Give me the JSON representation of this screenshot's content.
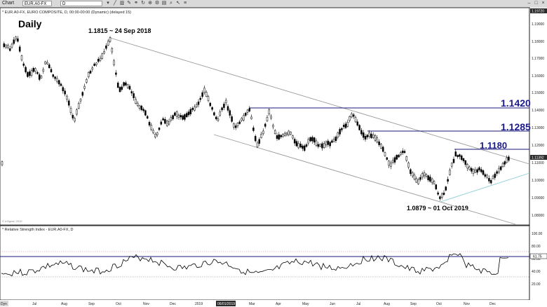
{
  "toolbar": {
    "window_label": "Chart",
    "symbol": "EUR.A0-FX",
    "interval": "D",
    "icons": [
      "chevron-down-icon",
      "line-icon",
      "chart-type-icon",
      "drawing-icon",
      "link-icon",
      "refresh-icon",
      "zoom-icon",
      "settings-icon",
      "print-icon",
      "search-icon",
      "cursor-icon",
      "menu-icon"
    ],
    "window_controls": [
      "minimize-icon",
      "maximize-icon",
      "close-icon"
    ]
  },
  "price_pane": {
    "header": "* EUR.A0-FX, EURO COMPOSITE, D, 00:00-00:00 (Dynamic) (delayed 15)",
    "title": "Daily",
    "annotation_high": "1.1815 ~ 24 Sep 2018",
    "annotation_low": "1.0879 ~ 01 Oct 2019",
    "levels": [
      {
        "label": "1.1420",
        "value": 1.142
      },
      {
        "label": "1.1285",
        "value": 1.1285
      },
      {
        "label": "1.1180",
        "value": 1.118
      }
    ],
    "last_price_label": "1.11392",
    "copyright": "© eSignal, 2019",
    "ylabels": [
      "1.19000",
      "1.18000",
      "1.17000",
      "1.16000",
      "1.15000",
      "1.14000",
      "1.13000",
      "1.12000",
      "1.11000",
      "1.10000",
      "1.09000",
      "1.08000"
    ],
    "ytop_label": "1.19720"
  },
  "rsi_pane": {
    "header": "* Relative Strength Index - EUR.A0-FX, D",
    "ylabels": [
      "100.00",
      "80.00",
      "60.00",
      "40.00",
      "20.00"
    ],
    "rsi_value_label": "61.75",
    "level_high": 70,
    "level_low": 30
  },
  "xaxis": {
    "first_label": "Dyn",
    "labels": [
      "Jul",
      "Aug",
      "Sep",
      "Oct",
      "Nov",
      "Dec",
      "2019",
      "Mar",
      "Apr",
      "May",
      "Jun",
      "Jul",
      "Aug",
      "Sep",
      "Oct",
      "Nov",
      "Dec"
    ],
    "highlighted_label": "06/01/2019"
  },
  "colors": {
    "level_line": "#1a1a7a",
    "level_text": "#1a1a8c",
    "channel": "#9a9a9a",
    "support_line": "#8ecfd6",
    "candle": "#000000"
  },
  "chart_data": {
    "type": "candlestick",
    "title": "Daily",
    "ylim": [
      1.077,
      1.1972
    ],
    "annotated_points": [
      {
        "date": "24 Sep 2018",
        "price": 1.1815
      },
      {
        "date": "01 Oct 2019",
        "price": 1.0879
      }
    ],
    "horizontal_levels": [
      1.142,
      1.1285,
      1.118
    ],
    "last_price": 1.11392,
    "rsi": {
      "ylim": [
        0,
        100
      ],
      "levels": [
        70,
        30
      ],
      "last": 61.75
    }
  }
}
